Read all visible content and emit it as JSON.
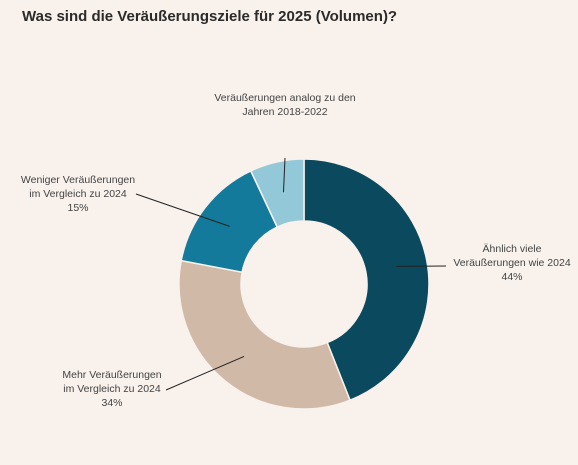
{
  "chart_data": {
    "type": "pie",
    "title": "Was sind die Veräußerungsziele für 2025 (Volumen)?",
    "slices": [
      {
        "label": [
          "Ähnlich viele",
          "Veräußerungen wie 2024",
          "44%"
        ],
        "value": 44,
        "color": "#0b4a5e"
      },
      {
        "label": [
          "Mehr Veräußerungen",
          "im Vergleich zu 2024",
          "34%"
        ],
        "value": 34,
        "color": "#d1b9a7"
      },
      {
        "label": [
          "Weniger Veräußerungen",
          "im Vergleich zu 2024",
          "15%"
        ],
        "value": 15,
        "color": "#147a9c"
      },
      {
        "label": [
          "Veräußerungen analog zu den",
          "Jahren 2018-2022"
        ],
        "value": 7,
        "color": "#93c8d9"
      }
    ]
  }
}
